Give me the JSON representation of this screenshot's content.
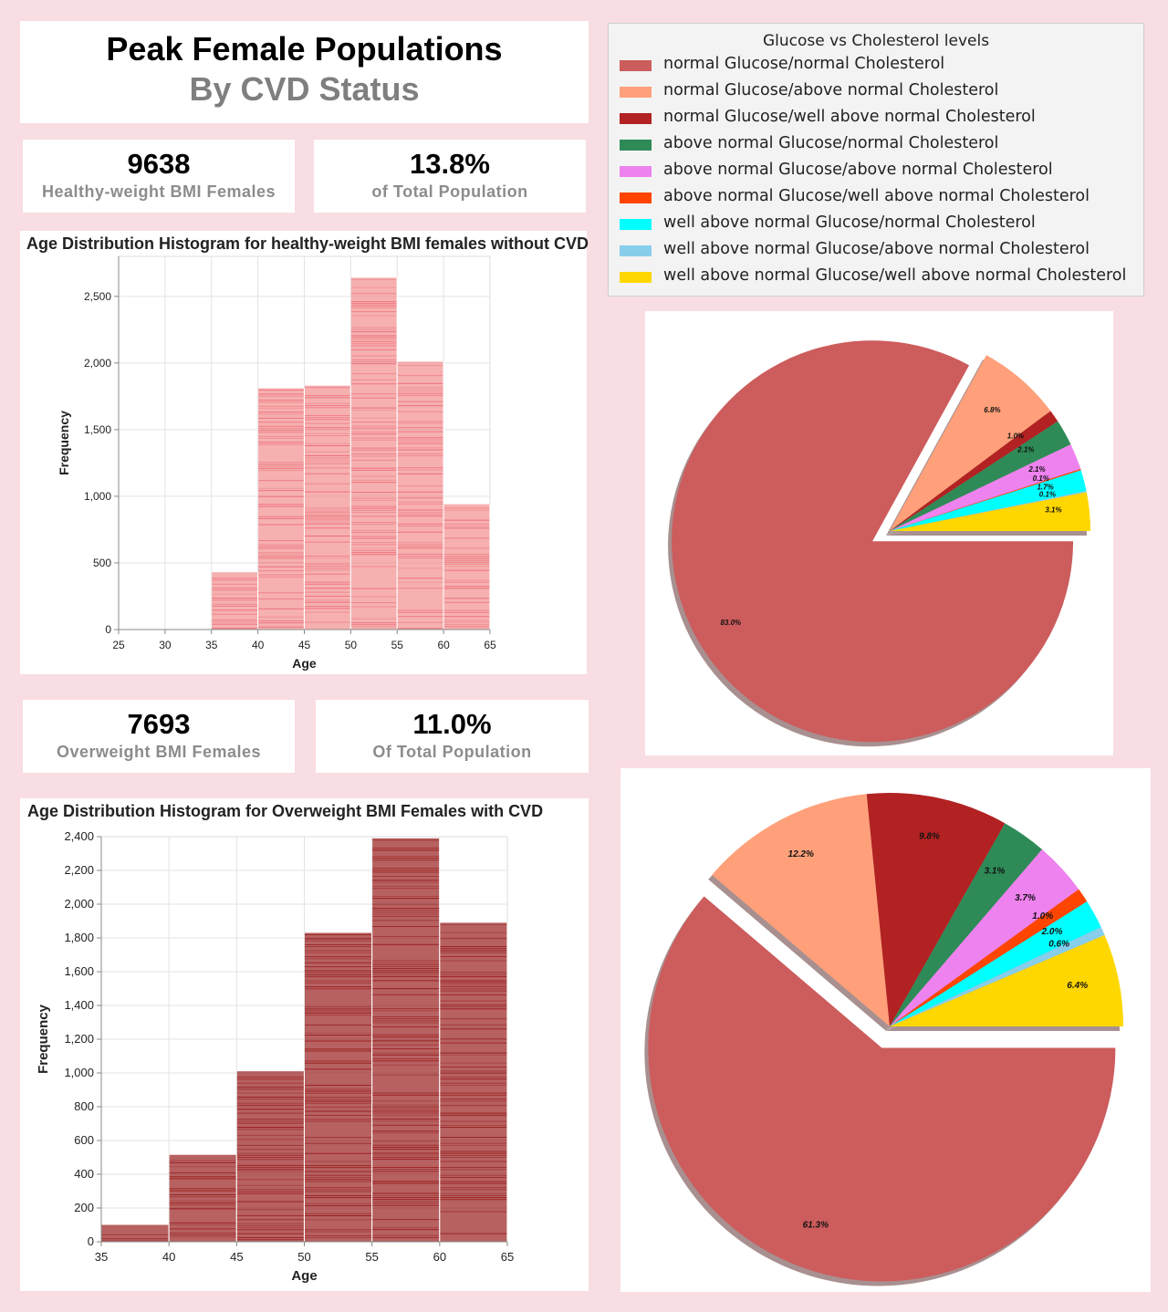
{
  "header": {
    "title_line1": "Peak Female Populations",
    "title_line2": "By CVD Status"
  },
  "kpis": [
    {
      "number": "9638",
      "label": "Healthy-weight BMI Females"
    },
    {
      "number": "13.8%",
      "label": "of Total Population"
    },
    {
      "number": "7693",
      "label": "Overweight BMI Females"
    },
    {
      "number": "11.0%",
      "label": "Of Total Population"
    }
  ],
  "legend": {
    "title": "Glucose vs Cholesterol levels",
    "items": [
      {
        "label": "normal Glucose/normal Cholesterol",
        "color": "#cd5c5c"
      },
      {
        "label": "normal Glucose/above normal Cholesterol",
        "color": "#ffa07a"
      },
      {
        "label": "normal Glucose/well above normal Cholesterol",
        "color": "#b22222"
      },
      {
        "label": "above normal Glucose/normal Cholesterol",
        "color": "#2e8b57"
      },
      {
        "label": "above normal Glucose/above normal Cholesterol",
        "color": "#ee82ee"
      },
      {
        "label": "above normal Glucose/well above normal Cholesterol",
        "color": "#ff4500"
      },
      {
        "label": "well above normal Glucose/normal Cholesterol",
        "color": "#00ffff"
      },
      {
        "label": "well above normal Glucose/above normal Cholesterol",
        "color": "#87ceeb"
      },
      {
        "label": "well above normal Glucose/well above normal Cholesterol",
        "color": "#ffd700"
      }
    ]
  },
  "chart_data": [
    {
      "type": "bar",
      "title": "Age Distribution Histogram for healthy-weight BMI females without CVD",
      "xlabel": "Age",
      "ylabel": "Frequency",
      "bin_edges": [
        25,
        30,
        35,
        40,
        45,
        50,
        55,
        60,
        65
      ],
      "values": [
        0,
        0,
        430,
        1810,
        1830,
        2640,
        2010,
        940
      ],
      "xlim": [
        25,
        65
      ],
      "ylim": [
        0,
        2800
      ],
      "y_ticks": [
        0,
        500,
        1000,
        1500,
        2000,
        2500
      ],
      "color": "#f08080",
      "grid": true
    },
    {
      "type": "bar",
      "title": "Age Distribution Histogram for Overweight BMI Females with CVD",
      "xlabel": "Age",
      "ylabel": "Frequency",
      "bin_edges": [
        35,
        40,
        45,
        50,
        55,
        60,
        65
      ],
      "values": [
        100,
        515,
        1010,
        1830,
        2390,
        1890
      ],
      "xlim": [
        35,
        65
      ],
      "ylim": [
        0,
        2400
      ],
      "y_ticks": [
        0,
        200,
        400,
        600,
        800,
        1000,
        1200,
        1400,
        1600,
        1800,
        2000,
        2200,
        2400
      ],
      "color": "#8b0000",
      "grid": true
    },
    {
      "type": "pie",
      "labels": [
        "normal Glucose/normal Cholesterol",
        "normal Glucose/above normal Cholesterol",
        "normal Glucose/well above normal Cholesterol",
        "above normal Glucose/normal Cholesterol",
        "above normal Glucose/above normal Cholesterol",
        "above normal Glucose/well above normal Cholesterol",
        "well above normal Glucose/normal Cholesterol",
        "well above normal Glucose/above normal Cholesterol",
        "well above normal Glucose/well above normal Cholesterol"
      ],
      "values": [
        83.0,
        6.8,
        1.0,
        2.1,
        2.1,
        0.1,
        1.7,
        0.1,
        3.1
      ],
      "value_labels": [
        "83.0%",
        "6.8%",
        "1.0%",
        "2.1%",
        "2.1%",
        "0.1%",
        "1.7%",
        "0.1%",
        "3.1%"
      ],
      "exploded_slice": "normal Glucose/normal Cholesterol",
      "shadow": true
    },
    {
      "type": "pie",
      "labels": [
        "normal Glucose/normal Cholesterol",
        "normal Glucose/above normal Cholesterol",
        "normal Glucose/well above normal Cholesterol",
        "above normal Glucose/normal Cholesterol",
        "above normal Glucose/above normal Cholesterol",
        "above normal Glucose/well above normal Cholesterol",
        "well above normal Glucose/normal Cholesterol",
        "well above normal Glucose/above normal Cholesterol",
        "well above normal Glucose/well above normal Cholesterol"
      ],
      "values": [
        61.3,
        12.2,
        9.8,
        3.1,
        3.7,
        1.0,
        2.0,
        0.6,
        6.4
      ],
      "value_labels": [
        "61.3%",
        "12.2%",
        "9.8%",
        "3.1%",
        "3.7%",
        "1.0%",
        "2.0%",
        "0.6%",
        "6.4%"
      ],
      "exploded_slice": "normal Glucose/normal Cholesterol",
      "shadow": true
    }
  ]
}
